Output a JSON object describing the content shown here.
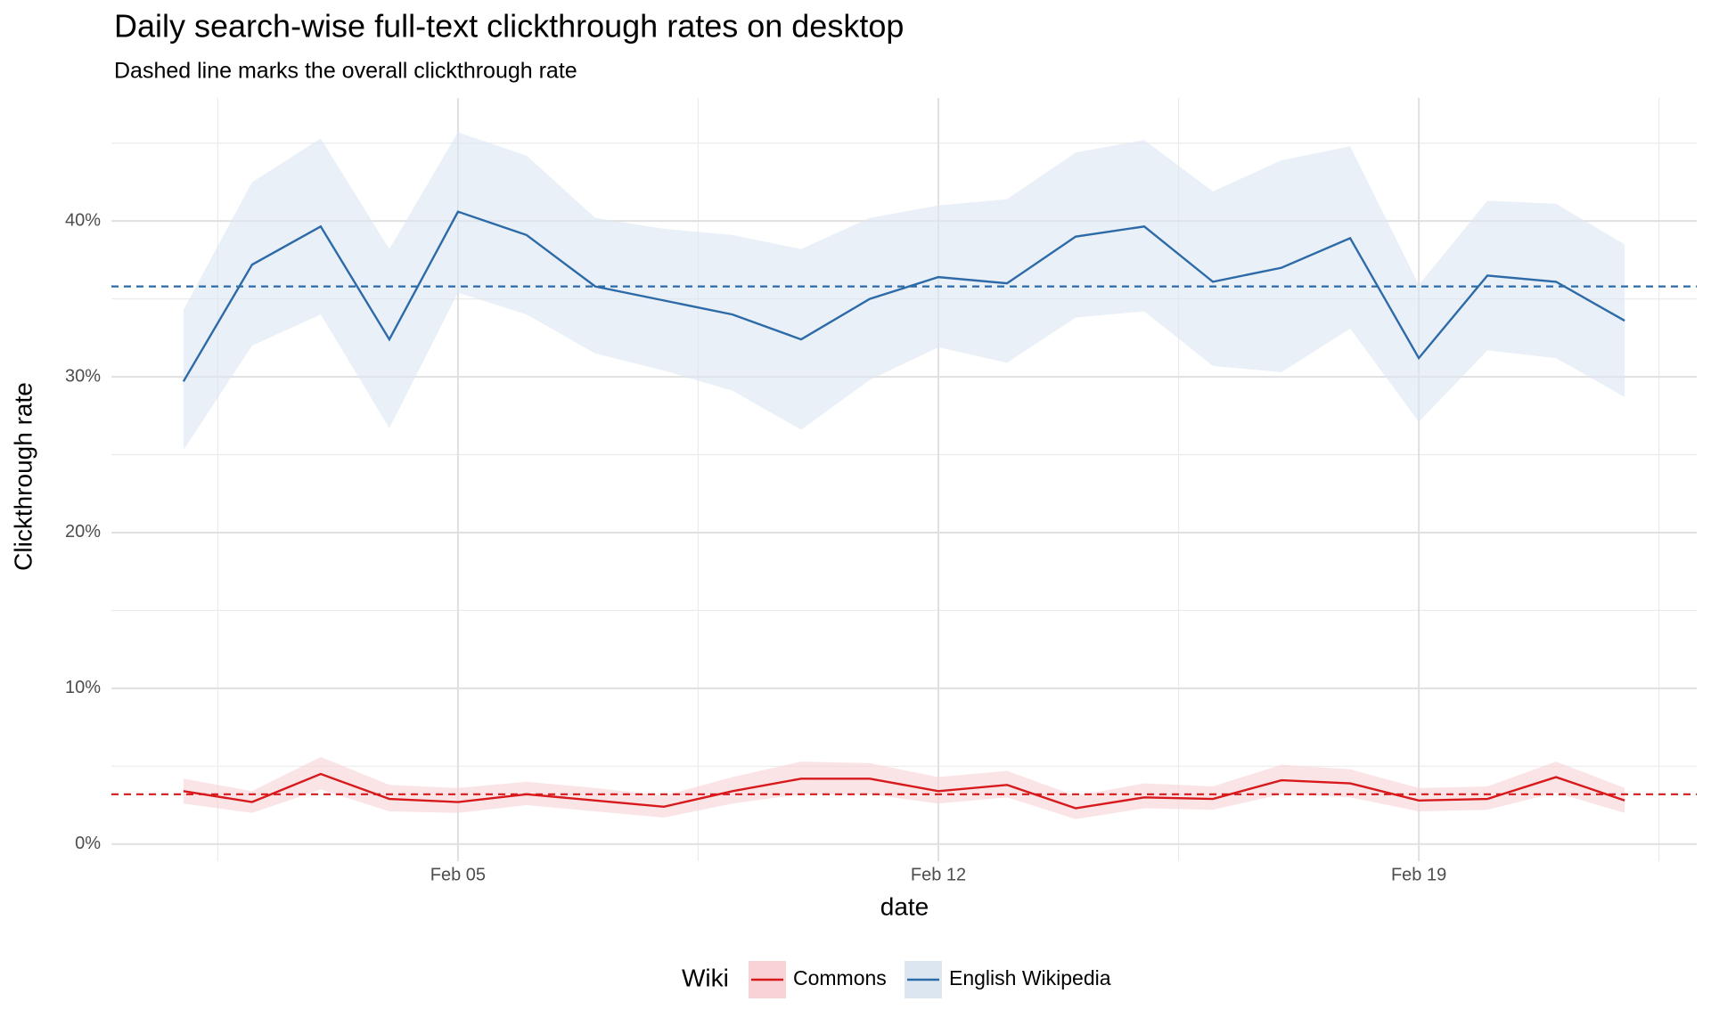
{
  "chart_data": {
    "type": "line",
    "title": "Daily search-wise full-text clickthrough rates on desktop",
    "subtitle": "Dashed line marks the overall clickthrough rate",
    "x_label": "date",
    "y_label": "Clickthrough rate",
    "legend_title": "Wiki",
    "legend_position": "bottom",
    "grid": true,
    "x": [
      1,
      2,
      3,
      4,
      5,
      6,
      7,
      8,
      9,
      10,
      11,
      12,
      13,
      14,
      15,
      16,
      17,
      18,
      19,
      20,
      21,
      22
    ],
    "xlim": [
      -0.05,
      23.05
    ],
    "xticks": [
      {
        "value": 5,
        "label": "Feb 05"
      },
      {
        "value": 12,
        "label": "Feb 12"
      },
      {
        "value": 19,
        "label": "Feb 19"
      }
    ],
    "ylim": [
      -1.1,
      47.9
    ],
    "yticks": [
      {
        "value": 0,
        "label": "0%"
      },
      {
        "value": 10,
        "label": "10%"
      },
      {
        "value": 20,
        "label": "20%"
      },
      {
        "value": 30,
        "label": "30%"
      },
      {
        "value": 40,
        "label": "40%"
      }
    ],
    "series": [
      {
        "name": "Commons",
        "color": "#d7191c",
        "ribbon_color": "#f9d2d6",
        "values": [
          3.4,
          2.7,
          4.5,
          2.9,
          2.7,
          3.2,
          2.8,
          2.4,
          3.4,
          4.2,
          4.2,
          3.4,
          3.8,
          2.3,
          3.0,
          2.9,
          4.1,
          3.9,
          2.8,
          2.9,
          4.3,
          2.8
        ],
        "upper": [
          4.2,
          3.4,
          5.6,
          3.8,
          3.6,
          4.0,
          3.6,
          3.1,
          4.3,
          5.3,
          5.2,
          4.3,
          4.7,
          3.1,
          3.9,
          3.7,
          5.1,
          4.8,
          3.6,
          3.7,
          5.3,
          3.6
        ],
        "lower": [
          2.6,
          2.0,
          3.5,
          2.1,
          2.0,
          2.5,
          2.1,
          1.7,
          2.6,
          3.2,
          3.2,
          2.6,
          3.0,
          1.6,
          2.3,
          2.2,
          3.2,
          3.0,
          2.1,
          2.2,
          3.3,
          2.0
        ],
        "overall": 3.2
      },
      {
        "name": "English Wikipedia",
        "color": "#2c6aa8",
        "ribbon_color": "#dce6f1",
        "values": [
          29.7,
          37.2,
          39.65,
          32.4,
          40.6,
          39.1,
          35.8,
          34.9,
          34.0,
          32.4,
          35.0,
          36.4,
          36.0,
          39.0,
          39.65,
          36.1,
          37.0,
          38.9,
          31.2,
          36.5,
          36.1,
          33.6
        ],
        "upper": [
          34.3,
          42.5,
          45.3,
          38.2,
          45.7,
          44.2,
          40.2,
          39.5,
          39.1,
          38.2,
          40.2,
          41.0,
          41.4,
          44.4,
          45.2,
          41.9,
          43.9,
          44.8,
          35.9,
          41.3,
          41.1,
          38.5
        ],
        "lower": [
          25.3,
          32.0,
          34.0,
          26.7,
          35.4,
          34.0,
          31.5,
          30.4,
          29.1,
          26.6,
          29.8,
          31.9,
          30.9,
          33.8,
          34.2,
          30.7,
          30.3,
          33.1,
          27.1,
          31.7,
          31.2,
          28.7
        ],
        "overall": 35.8
      }
    ]
  }
}
